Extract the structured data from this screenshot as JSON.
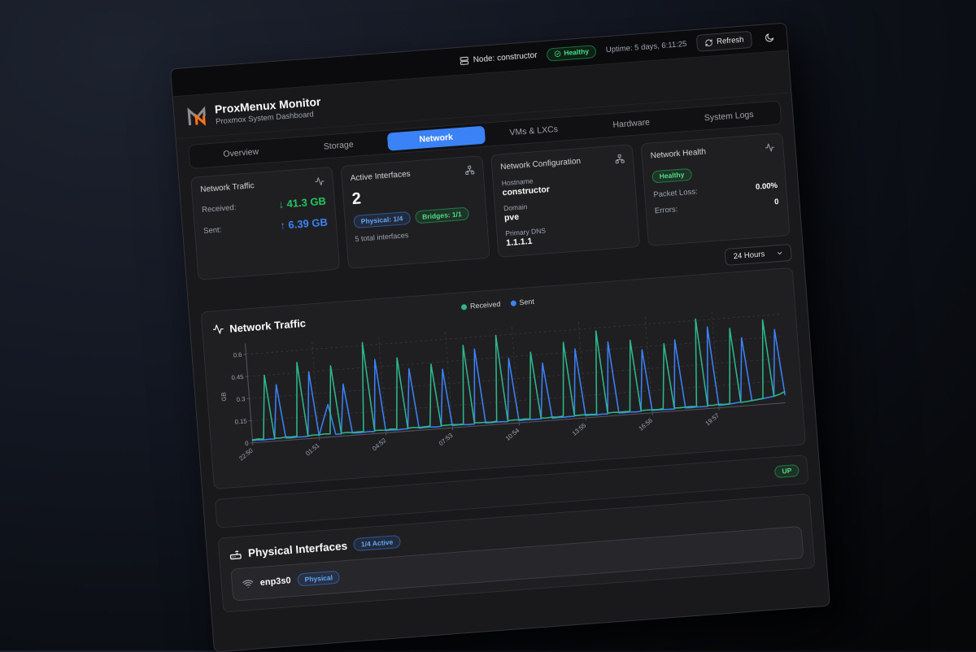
{
  "topbar": {
    "node": "Node: constructor",
    "health": "Healthy",
    "uptime": "Uptime: 5 days, 6:11:25",
    "refresh": "Refresh"
  },
  "header": {
    "title": "ProxMenux Monitor",
    "subtitle": "Proxmox System Dashboard"
  },
  "tabs": [
    {
      "label": "Overview",
      "active": false
    },
    {
      "label": "Storage",
      "active": false
    },
    {
      "label": "Network",
      "active": true
    },
    {
      "label": "VMs & LXCs",
      "active": false
    },
    {
      "label": "Hardware",
      "active": false
    },
    {
      "label": "System Logs",
      "active": false
    }
  ],
  "cards": {
    "traffic": {
      "title": "Network Traffic",
      "received_label": "Received:",
      "received_arrow": "↓",
      "received_value": "41.3 GB",
      "sent_label": "Sent:",
      "sent_arrow": "↑",
      "sent_value": "6.39 GB"
    },
    "interfaces": {
      "title": "Active Interfaces",
      "count": "2",
      "physical_badge": "Physical: 1/4",
      "bridges_badge": "Bridges: 1/1",
      "total": "5 total interfaces"
    },
    "config": {
      "title": "Network Configuration",
      "hostname_label": "Hostname",
      "hostname": "constructor",
      "domain_label": "Domain",
      "domain": "pve",
      "dns_label": "Primary DNS",
      "dns": "1.1.1.1"
    },
    "health": {
      "title": "Network Health",
      "status": "Healthy",
      "packet_loss_label": "Packet Loss:",
      "packet_loss": "0.00%",
      "errors_label": "Errors:",
      "errors": "0"
    }
  },
  "time_range": {
    "selected": "24 Hours"
  },
  "chart_section": {
    "title": "Network Traffic",
    "status_badge": "UP"
  },
  "physical_interfaces": {
    "title": "Physical Interfaces",
    "active_badge": "1/4 Active",
    "rows": [
      {
        "name": "enp3s0",
        "type_badge": "Physical"
      }
    ]
  },
  "colors": {
    "accent_blue": "#3b82f6",
    "green": "#22c55e",
    "received_line": "#2eb88a",
    "sent_line": "#3b82f6",
    "orange_logo": "#f97316"
  },
  "chart_data": {
    "type": "line",
    "title": "Network Traffic",
    "xlabel": "",
    "ylabel": "GB",
    "ylim": [
      0,
      0.65
    ],
    "yticks": [
      0,
      0.15,
      0.3,
      0.45,
      0.6
    ],
    "xtick_labels": [
      "22:50",
      "01:51",
      "04:52",
      "07:53",
      "10:54",
      "13:55",
      "16:56",
      "19:57"
    ],
    "xtick_indices": [
      0,
      12,
      24,
      36,
      48,
      60,
      72,
      84
    ],
    "grid": "dashed",
    "legend_position": "top-center",
    "series": [
      {
        "name": "Received",
        "color": "#2eb88a",
        "values": [
          0.02,
          0.024,
          0.019,
          0.45,
          0.021,
          0.018,
          0.023,
          0.02,
          0.022,
          0.52,
          0.019,
          0.022,
          0.02,
          0.024,
          0.021,
          0.48,
          0.02,
          0.023,
          0.019,
          0.021,
          0.02,
          0.62,
          0.022,
          0.02,
          0.018,
          0.023,
          0.021,
          0.5,
          0.02,
          0.022,
          0.019,
          0.021,
          0.023,
          0.44,
          0.02,
          0.021,
          0.022,
          0.019,
          0.02,
          0.55,
          0.023,
          0.02,
          0.021,
          0.019,
          0.022,
          0.6,
          0.02,
          0.022,
          0.021,
          0.023,
          0.02,
          0.47,
          0.021,
          0.019,
          0.022,
          0.02,
          0.023,
          0.52,
          0.02,
          0.021,
          0.022,
          0.02,
          0.019,
          0.58,
          0.021,
          0.023,
          0.02,
          0.022,
          0.021,
          0.5,
          0.02,
          0.022,
          0.021,
          0.019,
          0.023,
          0.46,
          0.021,
          0.02,
          0.022,
          0.023,
          0.021,
          0.61,
          0.022,
          0.02,
          0.024,
          0.021,
          0.022,
          0.53,
          0.025,
          0.028,
          0.032,
          0.036,
          0.04,
          0.57,
          0.05,
          0.06,
          0.075
        ]
      },
      {
        "name": "Sent",
        "color": "#3b82f6",
        "values": [
          0.015,
          0.017,
          0.014,
          0.016,
          0.015,
          0.38,
          0.016,
          0.014,
          0.017,
          0.015,
          0.016,
          0.45,
          0.015,
          0.12,
          0.22,
          0.016,
          0.015,
          0.35,
          0.016,
          0.014,
          0.015,
          0.017,
          0.015,
          0.5,
          0.015,
          0.016,
          0.014,
          0.017,
          0.016,
          0.42,
          0.015,
          0.016,
          0.017,
          0.014,
          0.016,
          0.4,
          0.015,
          0.017,
          0.016,
          0.014,
          0.015,
          0.52,
          0.016,
          0.015,
          0.017,
          0.016,
          0.014,
          0.44,
          0.015,
          0.016,
          0.017,
          0.015,
          0.016,
          0.39,
          0.014,
          0.016,
          0.015,
          0.017,
          0.016,
          0.47,
          0.015,
          0.016,
          0.014,
          0.017,
          0.015,
          0.5,
          0.016,
          0.015,
          0.017,
          0.014,
          0.016,
          0.43,
          0.015,
          0.017,
          0.016,
          0.015,
          0.014,
          0.48,
          0.016,
          0.015,
          0.017,
          0.016,
          0.015,
          0.55,
          0.016,
          0.018,
          0.02,
          0.024,
          0.028,
          0.46,
          0.032,
          0.036,
          0.04,
          0.045,
          0.05,
          0.5,
          0.055
        ]
      }
    ]
  }
}
